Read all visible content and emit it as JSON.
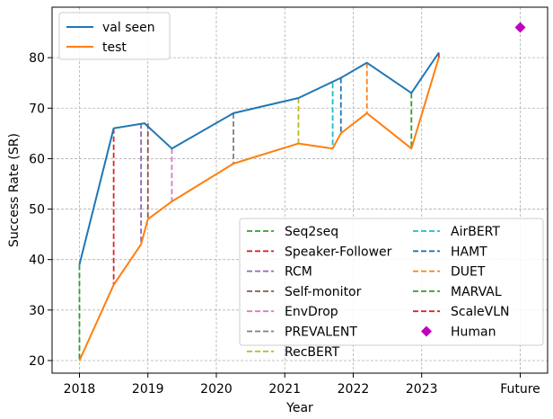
{
  "chart_data": {
    "type": "line",
    "xlabel": "Year",
    "ylabel": "Success Rate (SR)",
    "xlim": [
      2017.6,
      2024.84
    ],
    "ylim": [
      17.5,
      90
    ],
    "grid": true,
    "x_ticks": [
      {
        "value": 2018,
        "label": "2018"
      },
      {
        "value": 2019,
        "label": "2019"
      },
      {
        "value": 2020,
        "label": "2020"
      },
      {
        "value": 2021,
        "label": "2021"
      },
      {
        "value": 2022,
        "label": "2022"
      },
      {
        "value": 2023,
        "label": "2023"
      },
      {
        "value": 2024.44,
        "label": "Future"
      }
    ],
    "y_ticks": [
      20,
      30,
      40,
      50,
      60,
      70,
      80
    ],
    "series": [
      {
        "name": "val seen",
        "color": "#1f77b4",
        "points": [
          [
            2018.0,
            39
          ],
          [
            2018.5,
            66
          ],
          [
            2018.95,
            67
          ],
          [
            2019.35,
            62
          ],
          [
            2020.25,
            69
          ],
          [
            2021.2,
            72
          ],
          [
            2021.82,
            76
          ],
          [
            2022.2,
            79
          ],
          [
            2022.85,
            73
          ],
          [
            2023.25,
            81
          ]
        ]
      },
      {
        "name": "test",
        "color": "#ff7f0e",
        "points": [
          [
            2018.0,
            20
          ],
          [
            2018.5,
            35
          ],
          [
            2018.9,
            43
          ],
          [
            2019.0,
            48
          ],
          [
            2019.35,
            51.5
          ],
          [
            2020.25,
            59
          ],
          [
            2021.2,
            63
          ],
          [
            2021.7,
            62
          ],
          [
            2021.82,
            65
          ],
          [
            2022.2,
            69
          ],
          [
            2022.85,
            62
          ],
          [
            2023.25,
            80
          ]
        ]
      }
    ],
    "models": [
      {
        "name": "Seq2seq",
        "color": "#2ca02c",
        "x": 2018.0,
        "y_val": 39,
        "y_test": 20
      },
      {
        "name": "Speaker-Follower",
        "color": "#d62728",
        "x": 2018.5,
        "y_val": 66,
        "y_test": 35
      },
      {
        "name": "RCM",
        "color": "#9467bd",
        "x": 2018.9,
        "y_val": 67,
        "y_test": 43
      },
      {
        "name": "Self-monitor",
        "color": "#8c564b",
        "x": 2019.0,
        "y_val": 67,
        "y_test": 48
      },
      {
        "name": "EnvDrop",
        "color": "#e377c2",
        "x": 2019.35,
        "y_val": 62,
        "y_test": 51.5
      },
      {
        "name": "PREVALENT",
        "color": "#7f7f7f",
        "x": 2020.25,
        "y_val": 69,
        "y_test": 59
      },
      {
        "name": "RecBERT",
        "color": "#bcbd22",
        "x": 2021.2,
        "y_val": 72,
        "y_test": 63
      },
      {
        "name": "AirBERT",
        "color": "#17becf",
        "x": 2021.7,
        "y_val": 75,
        "y_test": 62
      },
      {
        "name": "HAMT",
        "color": "#1f77b4",
        "x": 2021.82,
        "y_val": 76,
        "y_test": 65
      },
      {
        "name": "DUET",
        "color": "#ff7f0e",
        "x": 2022.2,
        "y_val": 79,
        "y_test": 69
      },
      {
        "name": "MARVAL",
        "color": "#2ca02c",
        "x": 2022.85,
        "y_val": 73,
        "y_test": 62
      },
      {
        "name": "ScaleVLN",
        "color": "#d62728",
        "x": 2023.25,
        "y_val": 81,
        "y_test": 80
      }
    ],
    "human": {
      "name": "Human",
      "color": "#bf00bf",
      "x": 2024.44,
      "y": 86
    },
    "legend_top": {
      "placement": "upper-left",
      "entries": [
        "val seen",
        "test"
      ]
    },
    "legend_bottom": {
      "placement": "lower-right",
      "columns": [
        [
          "Seq2seq",
          "Speaker-Follower",
          "RCM",
          "Self-monitor",
          "EnvDrop",
          "PREVALENT",
          "RecBERT"
        ],
        [
          "AirBERT",
          "HAMT",
          "DUET",
          "MARVAL",
          "ScaleVLN",
          "Human"
        ]
      ]
    }
  }
}
